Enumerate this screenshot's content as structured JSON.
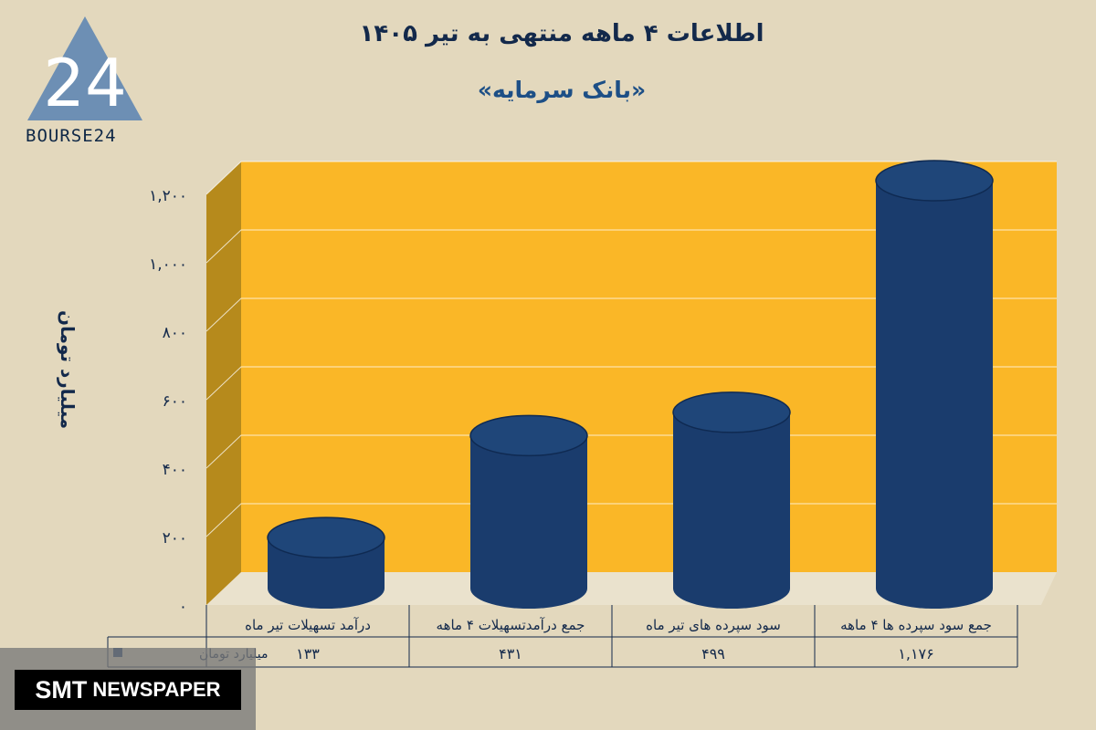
{
  "header": {
    "title": "اطلاعات ۴ ماهه منتهی به تیر ۱۴۰۵",
    "subtitle": "«بانک سرمایه»"
  },
  "logo": {
    "text": "BOURSE24",
    "mark": "24"
  },
  "watermark": {
    "part1": "SMT",
    "part2": "NEWSPAPER"
  },
  "colors": {
    "background": "#e3d8bd",
    "plot_area": "#fab727",
    "side_wall": "#b68a1c",
    "bar": "#1a3c6d",
    "text": "#13294b"
  },
  "chart_data": {
    "type": "bar",
    "title": "اطلاعات ۴ ماهه منتهی به تیر ۱۴۰۵",
    "subtitle": "«بانک سرمایه»",
    "ylabel": "میلیارد تومان",
    "ylim": [
      0,
      1200
    ],
    "yticks": [
      0,
      200,
      400,
      600,
      800,
      1000,
      1200
    ],
    "ytick_labels": [
      "۰",
      "۲۰۰",
      "۴۰۰",
      "۶۰۰",
      "۸۰۰",
      "۱,۰۰۰",
      "۱,۲۰۰"
    ],
    "categories": [
      "درآمد تسهیلات تیر ماه",
      "جمع درآمدتسهیلات ۴ ماهه",
      "سود سپرده های تیر ماه",
      "جمع سود سپرده ها ۴ ماهه"
    ],
    "series": [
      {
        "name": "میلیارد تومان",
        "values": [
          133,
          431,
          499,
          1176
        ],
        "value_labels": [
          "۱۳۳",
          "۴۳۱",
          "۴۹۹",
          "۱,۱۷۶"
        ]
      }
    ],
    "grid": true,
    "legend": "table-left",
    "bar_shape": "cylinder"
  }
}
